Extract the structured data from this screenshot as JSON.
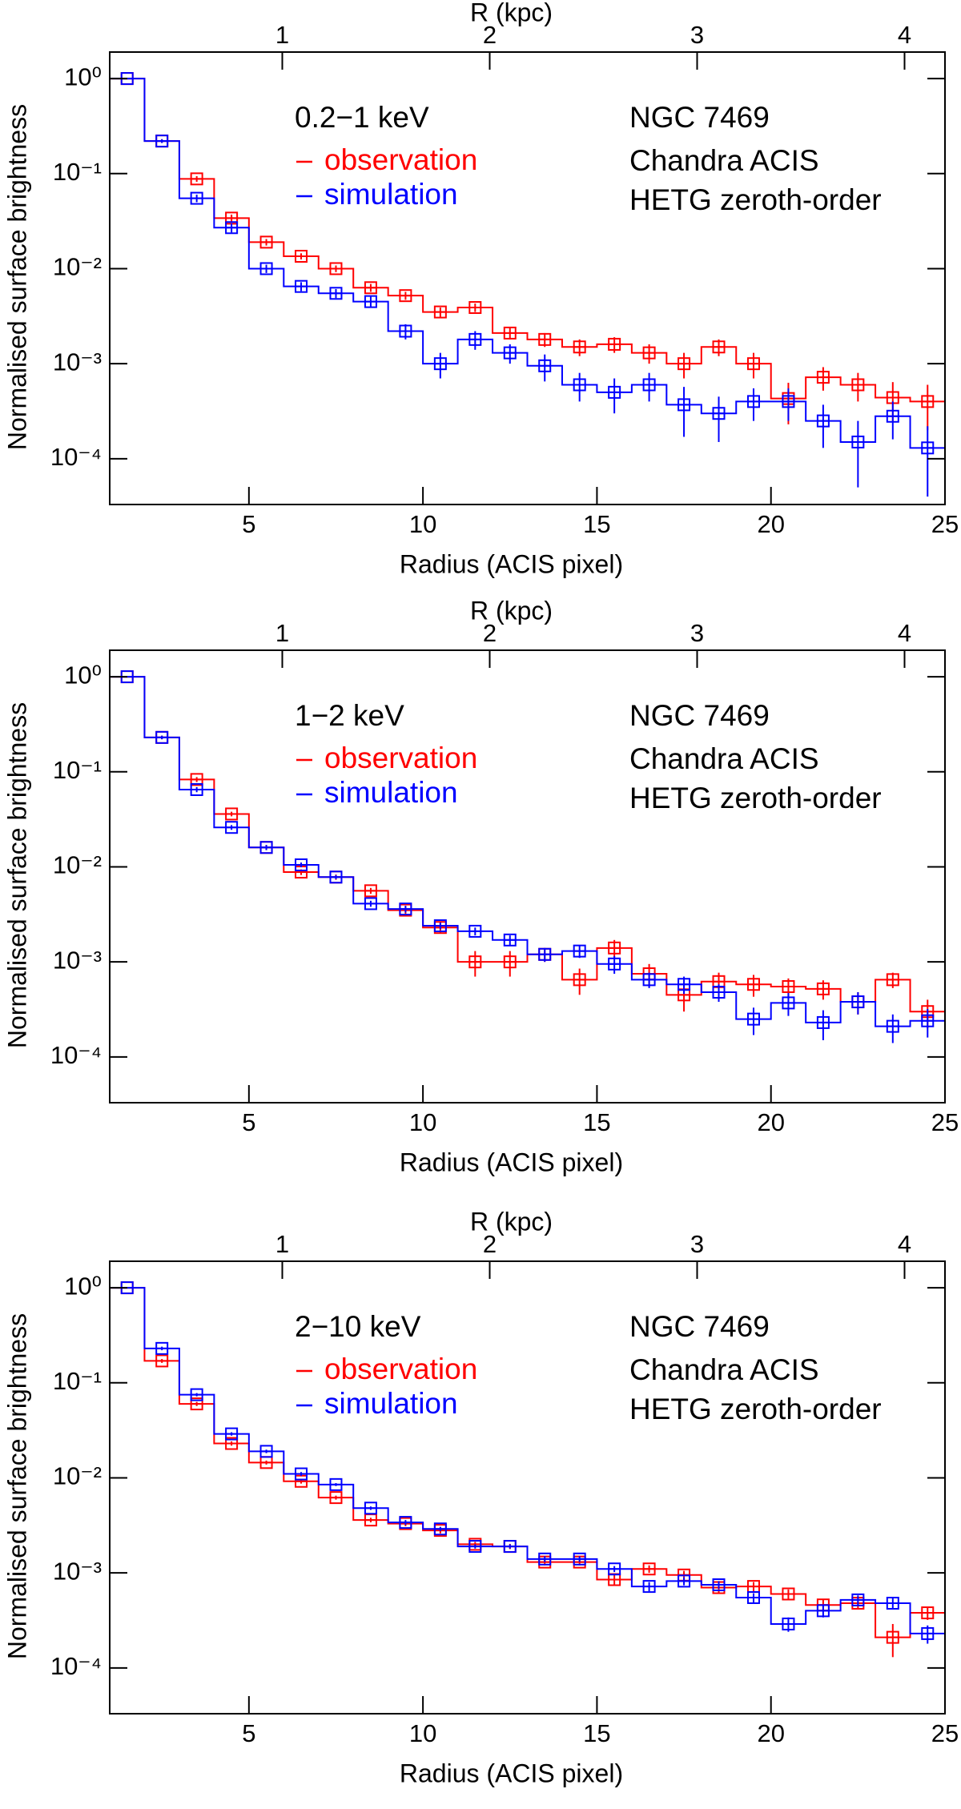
{
  "chart_data": [
    {
      "type": "step",
      "annotations": [
        "0.2−1 keV",
        "NGC 7469",
        "Chandra ACIS",
        "HETG zeroth-order"
      ],
      "xlabel": "Radius (ACIS pixel)",
      "ylabel": "Normalised surface brightness",
      "x2label": "R (kpc)",
      "x": [
        1.5,
        2.5,
        3.5,
        4.5,
        5.5,
        6.5,
        7.5,
        8.5,
        9.5,
        10.5,
        11.5,
        12.5,
        13.5,
        14.5,
        15.5,
        16.5,
        17.5,
        18.5,
        19.5,
        20.5,
        21.5,
        22.5,
        23.5,
        24.5
      ],
      "series": [
        {
          "name": "observation",
          "color": "#ff0000",
          "values": [
            1.0,
            0.22,
            0.088,
            0.034,
            0.019,
            0.0135,
            0.01,
            0.0063,
            0.0052,
            0.0035,
            0.0039,
            0.0021,
            0.0018,
            0.0015,
            0.0016,
            0.0013,
            0.001,
            0.0015,
            0.001,
            0.00043,
            0.00072,
            0.0006,
            0.00044,
            0.0004
          ],
          "errors": [
            0.01,
            0.01,
            0.006,
            0.003,
            0.0015,
            0.001,
            0.0008,
            0.0006,
            0.0005,
            0.0004,
            0.0004,
            0.0003,
            0.0003,
            0.0003,
            0.0003,
            0.0003,
            0.0003,
            0.0003,
            0.0003,
            0.0002,
            0.0002,
            0.0002,
            0.0002,
            0.0002
          ]
        },
        {
          "name": "simulation",
          "color": "#0000ff",
          "values": [
            1.0,
            0.22,
            0.055,
            0.027,
            0.01,
            0.0065,
            0.0055,
            0.0045,
            0.0022,
            0.001,
            0.0018,
            0.0013,
            0.00095,
            0.0006,
            0.0005,
            0.0006,
            0.00037,
            0.0003,
            0.0004,
            0.0004,
            0.00025,
            0.00015,
            0.00028,
            0.00013
          ],
          "errors": [
            0.01,
            0.01,
            0.005,
            0.003,
            0.001,
            0.0007,
            0.0006,
            0.0006,
            0.0004,
            0.0003,
            0.0004,
            0.0003,
            0.0003,
            0.0002,
            0.0002,
            0.0002,
            0.0002,
            0.00015,
            0.00015,
            0.00015,
            0.00012,
            0.0001,
            0.00012,
            9e-05
          ]
        }
      ],
      "xlim": [
        1,
        25
      ],
      "xticks": [
        5,
        10,
        15,
        20,
        25
      ],
      "x2lim": [
        0.168,
        4.195
      ],
      "x2ticks": [
        1,
        2,
        3,
        4
      ],
      "ylim": [
        3.3e-05,
        1.9
      ],
      "log_scale": "y",
      "yticks": [
        {
          "value": 0.0001,
          "label": "10⁻⁴"
        },
        {
          "value": 0.001,
          "label": "10⁻³"
        },
        {
          "value": 0.01,
          "label": "10⁻²"
        },
        {
          "value": 0.1,
          "label": "10⁻¹"
        },
        {
          "value": 1,
          "label": "10⁰"
        }
      ]
    },
    {
      "type": "step",
      "annotations": [
        "1−2 keV",
        "NGC 7469",
        "Chandra ACIS",
        "HETG zeroth-order"
      ],
      "xlabel": "Radius (ACIS pixel)",
      "ylabel": "Normalised surface brightness",
      "x2label": "R (kpc)",
      "x": [
        1.5,
        2.5,
        3.5,
        4.5,
        5.5,
        6.5,
        7.5,
        8.5,
        9.5,
        10.5,
        11.5,
        12.5,
        13.5,
        14.5,
        15.5,
        16.5,
        17.5,
        18.5,
        19.5,
        20.5,
        21.5,
        22.5,
        23.5,
        24.5
      ],
      "series": [
        {
          "name": "observation",
          "color": "#ff0000",
          "values": [
            1.0,
            0.23,
            0.083,
            0.036,
            0.016,
            0.0088,
            0.0078,
            0.0056,
            0.0035,
            0.0023,
            0.001,
            0.001,
            0.0012,
            0.00065,
            0.0014,
            0.00075,
            0.00045,
            0.00062,
            0.00058,
            0.00055,
            0.00052,
            0.00038,
            0.00065,
            0.0003
          ],
          "errors": [
            0.01,
            0.01,
            0.005,
            0.002,
            0.001,
            0.0006,
            0.0005,
            0.0004,
            0.0003,
            0.0003,
            0.0003,
            0.0003,
            0.0002,
            0.0002,
            0.0003,
            0.0002,
            0.00015,
            0.00015,
            0.00015,
            0.00012,
            0.00012,
            0.0001,
            0.00012,
            0.0001
          ]
        },
        {
          "name": "simulation",
          "color": "#0000ff",
          "values": [
            1.0,
            0.23,
            0.065,
            0.026,
            0.016,
            0.0105,
            0.0078,
            0.0041,
            0.0036,
            0.0024,
            0.0021,
            0.0017,
            0.0012,
            0.0013,
            0.00095,
            0.00065,
            0.00058,
            0.00048,
            0.00025,
            0.00037,
            0.00023,
            0.00038,
            0.00021,
            0.00024
          ],
          "errors": [
            0.01,
            0.01,
            0.004,
            0.0015,
            0.001,
            0.0006,
            0.0004,
            0.0003,
            0.0003,
            0.0002,
            0.0002,
            0.0002,
            0.0002,
            0.0002,
            0.0002,
            0.00012,
            0.00012,
            0.0001,
            8e-05,
            0.0001,
            8e-05,
            0.0001,
            7e-05,
            8e-05
          ]
        }
      ],
      "xlim": [
        1,
        25
      ],
      "xticks": [
        5,
        10,
        15,
        20,
        25
      ],
      "x2lim": [
        0.168,
        4.195
      ],
      "x2ticks": [
        1,
        2,
        3,
        4
      ],
      "ylim": [
        3.3e-05,
        1.9
      ],
      "log_scale": "y",
      "yticks": [
        {
          "value": 0.0001,
          "label": "10⁻⁴"
        },
        {
          "value": 0.001,
          "label": "10⁻³"
        },
        {
          "value": 0.01,
          "label": "10⁻²"
        },
        {
          "value": 0.1,
          "label": "10⁻¹"
        },
        {
          "value": 1,
          "label": "10⁰"
        }
      ]
    },
    {
      "type": "step",
      "annotations": [
        "2−10 keV",
        "NGC 7469",
        "Chandra ACIS",
        "HETG zeroth-order"
      ],
      "xlabel": "Radius (ACIS pixel)",
      "ylabel": "Normalised surface brightness",
      "x2label": "R (kpc)",
      "x": [
        1.5,
        2.5,
        3.5,
        4.5,
        5.5,
        6.5,
        7.5,
        8.5,
        9.5,
        10.5,
        11.5,
        12.5,
        13.5,
        14.5,
        15.5,
        16.5,
        17.5,
        18.5,
        19.5,
        20.5,
        21.5,
        22.5,
        23.5,
        24.5
      ],
      "series": [
        {
          "name": "observation",
          "color": "#ff0000",
          "values": [
            1.0,
            0.17,
            0.06,
            0.023,
            0.0145,
            0.0092,
            0.0062,
            0.0036,
            0.0033,
            0.0028,
            0.002,
            0.0019,
            0.0013,
            0.0013,
            0.00085,
            0.0011,
            0.00095,
            0.0007,
            0.00072,
            0.0006,
            0.00046,
            0.00048,
            0.00021,
            0.00038
          ],
          "errors": [
            0.01,
            0.008,
            0.003,
            0.0012,
            0.0007,
            0.0005,
            0.0003,
            0.0002,
            0.0002,
            0.0002,
            0.00012,
            0.00012,
            0.0001,
            0.0001,
            0.0001,
            0.0001,
            0.0001,
            8e-05,
            8e-05,
            7e-05,
            6e-05,
            6e-05,
            8e-05,
            6e-05
          ]
        },
        {
          "name": "simulation",
          "color": "#0000ff",
          "values": [
            1.0,
            0.23,
            0.075,
            0.029,
            0.019,
            0.011,
            0.0085,
            0.0048,
            0.0034,
            0.0029,
            0.0019,
            0.0019,
            0.0014,
            0.0014,
            0.0011,
            0.00072,
            0.00082,
            0.00075,
            0.00055,
            0.00029,
            0.0004,
            0.00052,
            0.00048,
            0.00023
          ],
          "errors": [
            0.01,
            0.01,
            0.003,
            0.0012,
            0.0008,
            0.0005,
            0.0003,
            0.0002,
            0.0002,
            0.00015,
            0.0001,
            0.0001,
            0.0001,
            0.0001,
            8e-05,
            8e-05,
            8e-05,
            7e-05,
            6e-05,
            5e-05,
            6e-05,
            6e-05,
            6e-05,
            5e-05
          ]
        }
      ],
      "xlim": [
        1,
        25
      ],
      "xticks": [
        5,
        10,
        15,
        20,
        25
      ],
      "x2lim": [
        0.168,
        4.195
      ],
      "x2ticks": [
        1,
        2,
        3,
        4
      ],
      "ylim": [
        3.3e-05,
        1.9
      ],
      "log_scale": "y",
      "yticks": [
        {
          "value": 0.0001,
          "label": "10⁻⁴"
        },
        {
          "value": 0.001,
          "label": "10⁻³"
        },
        {
          "value": 0.01,
          "label": "10⁻²"
        },
        {
          "value": 0.1,
          "label": "10⁻¹"
        },
        {
          "value": 1,
          "label": "10⁰"
        }
      ]
    }
  ]
}
